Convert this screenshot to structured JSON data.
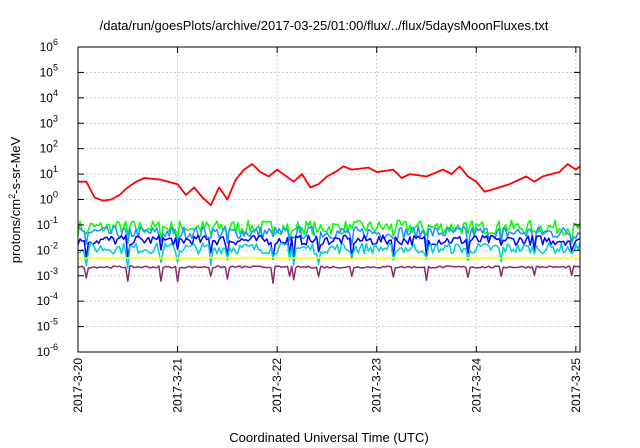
{
  "chart_data": {
    "type": "line",
    "title": "/data/run/goesPlots/archive/2017-03-25/01:00/flux/../flux/5daysMoonFluxes.txt",
    "xlabel": "Coordinated Universal Time (UTC)",
    "ylabel": {
      "prefix": "protons/cm",
      "sup": "2",
      "suffix": "-s-sr-MeV"
    },
    "yscale": "log",
    "ylim": [
      1e-06,
      1000000.0
    ],
    "y_ticks": [
      {
        "value": -6,
        "base": "10",
        "exp": "-6"
      },
      {
        "value": -5,
        "base": "10",
        "exp": "-5"
      },
      {
        "value": -4,
        "base": "10",
        "exp": "-4"
      },
      {
        "value": -3,
        "base": "10",
        "exp": "-3"
      },
      {
        "value": -2,
        "base": "10",
        "exp": "-2"
      },
      {
        "value": -1,
        "base": "10",
        "exp": "-1"
      },
      {
        "value": 0,
        "base": "10",
        "exp": "0"
      },
      {
        "value": 1,
        "base": "10",
        "exp": "1"
      },
      {
        "value": 2,
        "base": "10",
        "exp": "2"
      },
      {
        "value": 3,
        "base": "10",
        "exp": "3"
      },
      {
        "value": 4,
        "base": "10",
        "exp": "4"
      },
      {
        "value": 5,
        "base": "10",
        "exp": "5"
      },
      {
        "value": 6,
        "base": "10",
        "exp": "6"
      }
    ],
    "xlim": [
      "2017-03-20T00:00",
      "2017-03-25T01:00"
    ],
    "x_ticks": [
      {
        "date": "2017-03-20",
        "label": "2017-3-20"
      },
      {
        "date": "2017-03-21",
        "label": "2017-3-21"
      },
      {
        "date": "2017-03-22",
        "label": "2017-3-22"
      },
      {
        "date": "2017-03-23",
        "label": "2017-3-23"
      },
      {
        "date": "2017-03-24",
        "label": "2017-3-24"
      },
      {
        "date": "2017-03-25",
        "label": "2017-3-25"
      }
    ],
    "grid": true,
    "legend": "none",
    "series": [
      {
        "color": "#ff0000",
        "points": [
          [
            "2017-03-20T00:00",
            5
          ],
          [
            "2017-03-20T02:00",
            5
          ],
          [
            "2017-03-20T04:00",
            1.2
          ],
          [
            "2017-03-20T06:00",
            0.9
          ],
          [
            "2017-03-20T08:00",
            1
          ],
          [
            "2017-03-20T10:00",
            1.5
          ],
          [
            "2017-03-20T12:00",
            3
          ],
          [
            "2017-03-20T14:00",
            5
          ],
          [
            "2017-03-20T16:00",
            7
          ],
          [
            "2017-03-20T20:00",
            6
          ],
          [
            "2017-03-21T00:00",
            4
          ],
          [
            "2017-03-21T02:00",
            1.5
          ],
          [
            "2017-03-21T04:00",
            3
          ],
          [
            "2017-03-21T06:00",
            1.2
          ],
          [
            "2017-03-21T08:00",
            0.6
          ],
          [
            "2017-03-21T10:00",
            3
          ],
          [
            "2017-03-21T12:00",
            1
          ],
          [
            "2017-03-21T14:00",
            6
          ],
          [
            "2017-03-21T16:00",
            15
          ],
          [
            "2017-03-21T18:00",
            25
          ],
          [
            "2017-03-21T20:00",
            12
          ],
          [
            "2017-03-21T22:00",
            8
          ],
          [
            "2017-03-22T00:00",
            15
          ],
          [
            "2017-03-22T04:00",
            5
          ],
          [
            "2017-03-22T06:00",
            10
          ],
          [
            "2017-03-22T08:00",
            3
          ],
          [
            "2017-03-22T10:00",
            4
          ],
          [
            "2017-03-22T12:00",
            8
          ],
          [
            "2017-03-22T14:00",
            12
          ],
          [
            "2017-03-22T16:00",
            20
          ],
          [
            "2017-03-22T18:00",
            15
          ],
          [
            "2017-03-22T22:00",
            18
          ],
          [
            "2017-03-23T00:00",
            12
          ],
          [
            "2017-03-23T04:00",
            15
          ],
          [
            "2017-03-23T06:00",
            7
          ],
          [
            "2017-03-23T08:00",
            10
          ],
          [
            "2017-03-23T12:00",
            8
          ],
          [
            "2017-03-23T16:00",
            15
          ],
          [
            "2017-03-23T18:00",
            10
          ],
          [
            "2017-03-23T20:00",
            20
          ],
          [
            "2017-03-23T22:00",
            8
          ],
          [
            "2017-03-24T00:00",
            5
          ],
          [
            "2017-03-24T02:00",
            2
          ],
          [
            "2017-03-24T04:00",
            2.5
          ],
          [
            "2017-03-24T08:00",
            4
          ],
          [
            "2017-03-24T12:00",
            8
          ],
          [
            "2017-03-24T14:00",
            5
          ],
          [
            "2017-03-24T16:00",
            8
          ],
          [
            "2017-03-24T18:00",
            10
          ],
          [
            "2017-03-24T20:00",
            12
          ],
          [
            "2017-03-24T22:00",
            25
          ],
          [
            "2017-03-25T00:00",
            15
          ],
          [
            "2017-03-25T01:00",
            20
          ]
        ]
      },
      {
        "color": "#00ff00",
        "base": 0.08,
        "noise": 0.28,
        "dips": 0.5
      },
      {
        "color": "#1e90ff",
        "base": 0.05,
        "noise": 0.25,
        "dips": 0.55
      },
      {
        "color": "#0000ff",
        "base": 0.025,
        "noise": 0.2,
        "dips": 0.6
      },
      {
        "color": "#00ced1",
        "base": 0.012,
        "noise": 0.22,
        "dips": 0.7
      },
      {
        "color": "#ffff00",
        "base": 0.005,
        "noise": 0.03,
        "dips": 0
      },
      {
        "color": "#8b2a6b",
        "base": 0.0022,
        "noise": 0.04,
        "dips": 0.6
      }
    ],
    "dip_times": [
      "2017-03-20T02:00",
      "2017-03-20T12:00",
      "2017-03-20T20:00",
      "2017-03-21T00:00",
      "2017-03-21T08:00",
      "2017-03-21T12:00",
      "2017-03-21T23:00",
      "2017-03-22T03:00",
      "2017-03-22T04:00",
      "2017-03-22T10:00",
      "2017-03-22T18:00",
      "2017-03-23T04:00",
      "2017-03-23T12:00",
      "2017-03-23T22:00",
      "2017-03-24T06:00",
      "2017-03-24T14:00",
      "2017-03-24T23:00"
    ]
  }
}
